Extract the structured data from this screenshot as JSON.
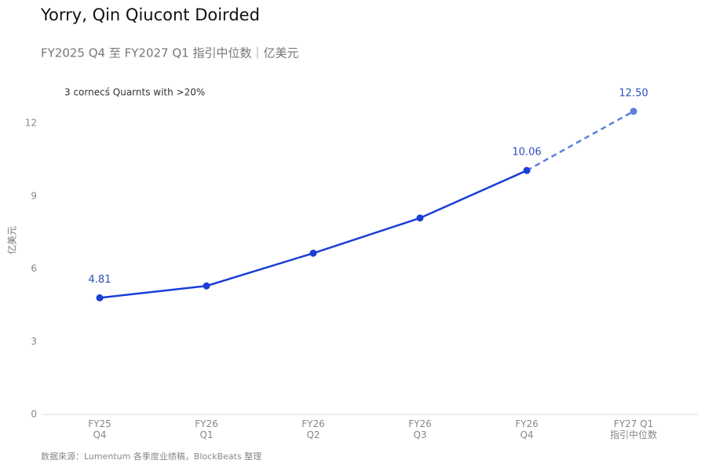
{
  "chart_data": {
    "type": "line",
    "title": "Yorry, Qin Qiucont Doirded",
    "subtitle": "FY2025 Q4 至 FY2027 Q1 指引中位数｜亿美元",
    "annotation": "3 cornecś Quarnts with >20%",
    "y_label": "亿美元",
    "source": "数据來源：Lumentum 各季度业绩稿，BlockBeats 整理",
    "categories": [
      "FY25\nQ4",
      "FY26\nQ1",
      "FY26\nQ2",
      "FY26\nQ3",
      "FY26\nQ4",
      "FY27 Q1\n指引中位数"
    ],
    "values": [
      4.81,
      5.3,
      6.65,
      8.1,
      10.06,
      12.5
    ],
    "value_labels": [
      "4.81",
      null,
      null,
      null,
      "10.06",
      "12.50"
    ],
    "color": "#1a3fd6",
    "dashed_color": "#5b82d8",
    "dashed_from_index": 4,
    "ylim": [
      0,
      14.5
    ],
    "yticks": [
      0,
      3,
      6,
      9,
      12
    ],
    "grid": false
  }
}
